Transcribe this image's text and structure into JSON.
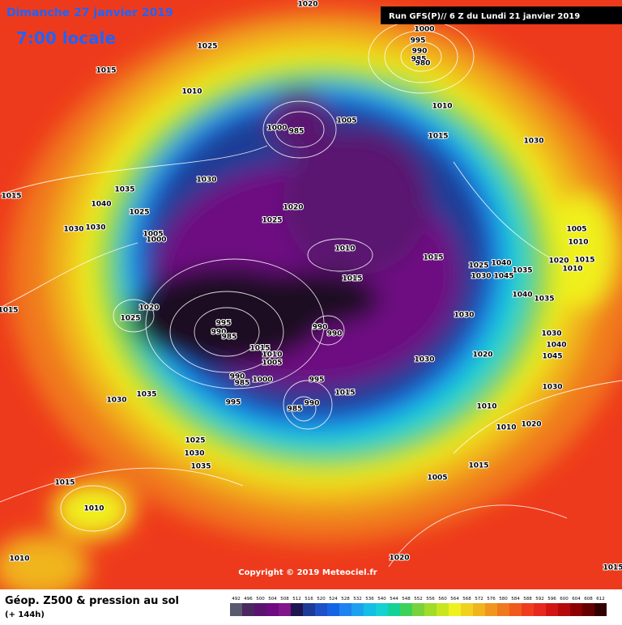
{
  "header": {
    "date": "Dimanche 27 janvier 2019",
    "time": "7:00 locale",
    "run": "Run GFS(P)// 6 Z du Lundi 21 janvier 2019"
  },
  "copyright": "Copyright © 2019 Meteociel.fr",
  "footer": {
    "title": "Géop. Z500 & pression au sol",
    "lead": "(+ 144h)"
  },
  "legend": {
    "values": [
      492,
      496,
      500,
      504,
      508,
      512,
      516,
      520,
      524,
      528,
      532,
      536,
      540,
      544,
      548,
      552,
      556,
      560,
      564,
      568,
      572,
      576,
      580,
      584,
      588,
      592,
      596,
      600,
      604,
      608,
      612
    ],
    "colors": [
      "#5a5a6e",
      "#4b2860",
      "#5a1470",
      "#6e0a82",
      "#82148c",
      "#1e1450",
      "#1e3c96",
      "#1e50c8",
      "#1464e6",
      "#1e82f0",
      "#1ea0f0",
      "#14bee6",
      "#14d2d2",
      "#14d296",
      "#3cd25a",
      "#78d23c",
      "#a0dc28",
      "#c8e61e",
      "#f0f01e",
      "#f0d21e",
      "#f0b41e",
      "#f0961e",
      "#f0781e",
      "#f05a1e",
      "#f03c1e",
      "#e6281e",
      "#d21414",
      "#b40a0a",
      "#8c0000",
      "#640000",
      "#320000"
    ]
  },
  "isobar_labels": [
    1020,
    1000,
    995,
    990,
    985,
    980,
    1025,
    1015,
    1010,
    1010,
    1005,
    1000,
    985,
    1015,
    1030,
    1030,
    1035,
    1040,
    1025,
    1020,
    1025,
    1030,
    1030,
    1005,
    1000,
    1015,
    1010,
    1015,
    1005,
    1010,
    1025,
    1040,
    1035,
    1020,
    1010,
    1015,
    1030,
    1045,
    1015,
    1040,
    1035,
    1015,
    1020,
    1025,
    995,
    990,
    985,
    990,
    990,
    1030,
    1015,
    1010,
    1005,
    1030,
    1020,
    1030,
    1040,
    1045,
    990,
    985,
    1000,
    995,
    1015,
    995,
    985,
    990,
    1030,
    1035,
    1030,
    1010,
    1010,
    1020,
    1025,
    1030,
    1035,
    1015,
    1005,
    1015,
    1010,
    1020,
    1010,
    1015
  ]
}
